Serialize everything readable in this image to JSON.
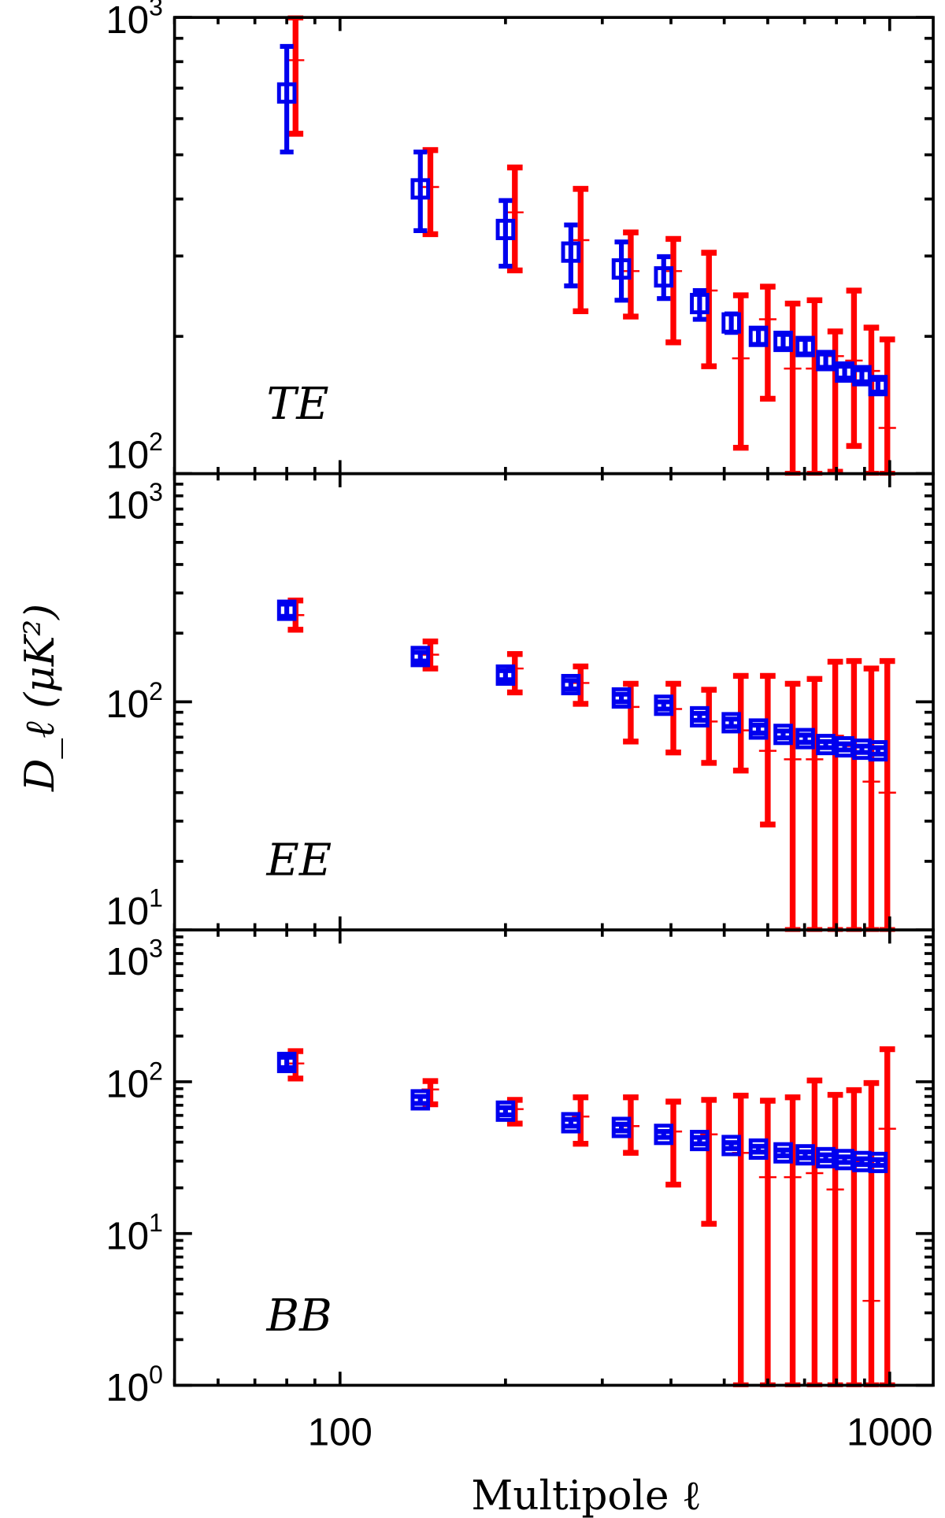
{
  "chart_data": {
    "type": "scatter",
    "xlabel": "Multipole ℓ",
    "ylabel": "D_ℓ (μK²)",
    "ylabel_parts": {
      "main": "D",
      "sub": "ℓ",
      "open": "(μK",
      "sup": "2",
      "close": ")"
    },
    "xscale": "log",
    "yscale": "log",
    "xlim": [
      50,
      1200
    ],
    "xticks": [
      {
        "value": 100,
        "label": "100"
      },
      {
        "value": 1000,
        "label": "1000"
      }
    ],
    "series_colors": {
      "blue": "#0000ee",
      "red": "#ff0000"
    },
    "panels": [
      {
        "label": "TE",
        "ylim": [
          100,
          1000
        ],
        "yticks": [
          {
            "value": 1000,
            "base": "10",
            "exp": "3"
          },
          {
            "value": 100,
            "base": "10",
            "exp": "2"
          }
        ],
        "blue": {
          "ell": [
            80,
            140,
            200,
            263,
            325,
            388,
            451,
            515,
            577,
            640,
            702,
            765,
            828,
            890,
            952
          ],
          "value": [
            683,
            421,
            343,
            306,
            281,
            270,
            236,
            214,
            200,
            195,
            190,
            177,
            167,
            164,
            156
          ],
          "lo": [
            507,
            341,
            285,
            258,
            240,
            242,
            218,
            204,
            192,
            188,
            183,
            171,
            162,
            159,
            151
          ],
          "hi": [
            864,
            507,
            397,
            351,
            322,
            299,
            252,
            224,
            208,
            202,
            197,
            183,
            172,
            169,
            161
          ]
        },
        "red": {
          "ell": [
            83,
            146,
            208,
            274,
            338,
            404,
            469,
            536,
            600,
            666,
            730,
            796,
            861,
            926,
            990
          ],
          "value": [
            806,
            425,
            374,
            325,
            278,
            278,
            252,
            179,
            218,
            170,
            170,
            181,
            177,
            168,
            126
          ],
          "lo": [
            556,
            335,
            279,
            227,
            221,
            194,
            172,
            114,
            146,
            98,
            98,
            101,
            115,
            98,
            98
          ],
          "hi": [
            1050,
            512,
            469,
            421,
            338,
            327,
            305,
            246,
            257,
            236,
            240,
            205,
            252,
            209,
            197
          ]
        }
      },
      {
        "label": "EE",
        "ylim": [
          10,
          1000
        ],
        "yticks": [
          {
            "value": 1000,
            "base": "10",
            "exp": "3"
          },
          {
            "value": 100,
            "base": "10",
            "exp": "2"
          },
          {
            "value": 10,
            "base": "10",
            "exp": "1"
          }
        ],
        "blue": {
          "ell": [
            80,
            140,
            200,
            263,
            325,
            388,
            451,
            515,
            577,
            640,
            702,
            765,
            828,
            890,
            952
          ],
          "value": [
            252,
            158,
            131,
            119,
            104,
            96.6,
            86,
            81,
            76,
            72,
            69,
            65,
            63.5,
            62,
            61
          ],
          "lo": [
            237,
            151,
            125,
            114,
            100,
            93,
            83,
            78,
            73,
            69.5,
            66.5,
            63,
            61.5,
            60,
            59
          ],
          "hi": [
            268,
            165,
            137,
            124,
            108,
            100,
            89,
            84,
            79,
            74.5,
            71.5,
            67,
            65.5,
            64,
            63
          ]
        },
        "red": {
          "ell": [
            83,
            146,
            208,
            274,
            338,
            404,
            469,
            536,
            600,
            666,
            730,
            796,
            861,
            926,
            990
          ],
          "value": [
            240,
            161,
            140,
            121,
            95,
            93,
            82,
            75,
            61,
            56,
            56,
            71,
            64,
            44.7,
            40
          ],
          "lo": [
            207,
            140,
            110,
            98,
            67,
            60,
            54,
            50,
            29,
            10,
            10,
            10,
            10,
            10,
            10
          ],
          "hi": [
            278,
            184,
            162,
            143,
            120,
            120,
            113,
            130,
            130,
            120,
            126,
            150,
            151,
            140,
            151
          ]
        }
      },
      {
        "label": "BB",
        "ylim": [
          1,
          1000
        ],
        "yticks": [
          {
            "value": 1000,
            "base": "10",
            "exp": "3"
          },
          {
            "value": 100,
            "base": "10",
            "exp": "2"
          },
          {
            "value": 10,
            "base": "10",
            "exp": "1"
          },
          {
            "value": 1,
            "base": "10",
            "exp": "0"
          }
        ],
        "blue": {
          "ell": [
            80,
            140,
            200,
            263,
            325,
            388,
            451,
            515,
            577,
            640,
            702,
            765,
            828,
            890,
            952
          ],
          "value": [
            134,
            76,
            64,
            53.7,
            50,
            45,
            41,
            38,
            36,
            34,
            33,
            31.6,
            30.7,
            29.8,
            29.4
          ],
          "lo": [
            124,
            72,
            60.5,
            51,
            47.5,
            43,
            39,
            36.3,
            34.4,
            32.5,
            31.5,
            30.2,
            29.4,
            28.5,
            28.1
          ],
          "hi": [
            145,
            80,
            67.5,
            56.5,
            52.5,
            47,
            43,
            39.7,
            37.6,
            35.5,
            34.5,
            33,
            32,
            31.1,
            30.7
          ]
        },
        "red": {
          "ell": [
            83,
            146,
            208,
            274,
            338,
            404,
            469,
            536,
            600,
            666,
            730,
            796,
            861,
            926,
            990
          ],
          "value": [
            132,
            89,
            66,
            59,
            51,
            47,
            45,
            34,
            23.5,
            23.5,
            25,
            19.5,
            30,
            3.6,
            49
          ],
          "lo": [
            105,
            71,
            53,
            39,
            34,
            21,
            11.6,
            1,
            1,
            1,
            1,
            1,
            1,
            1,
            1
          ],
          "hi": [
            159,
            101,
            76,
            79,
            79,
            74,
            76,
            81,
            75,
            79,
            102,
            82,
            88,
            98,
            164
          ]
        }
      }
    ]
  }
}
